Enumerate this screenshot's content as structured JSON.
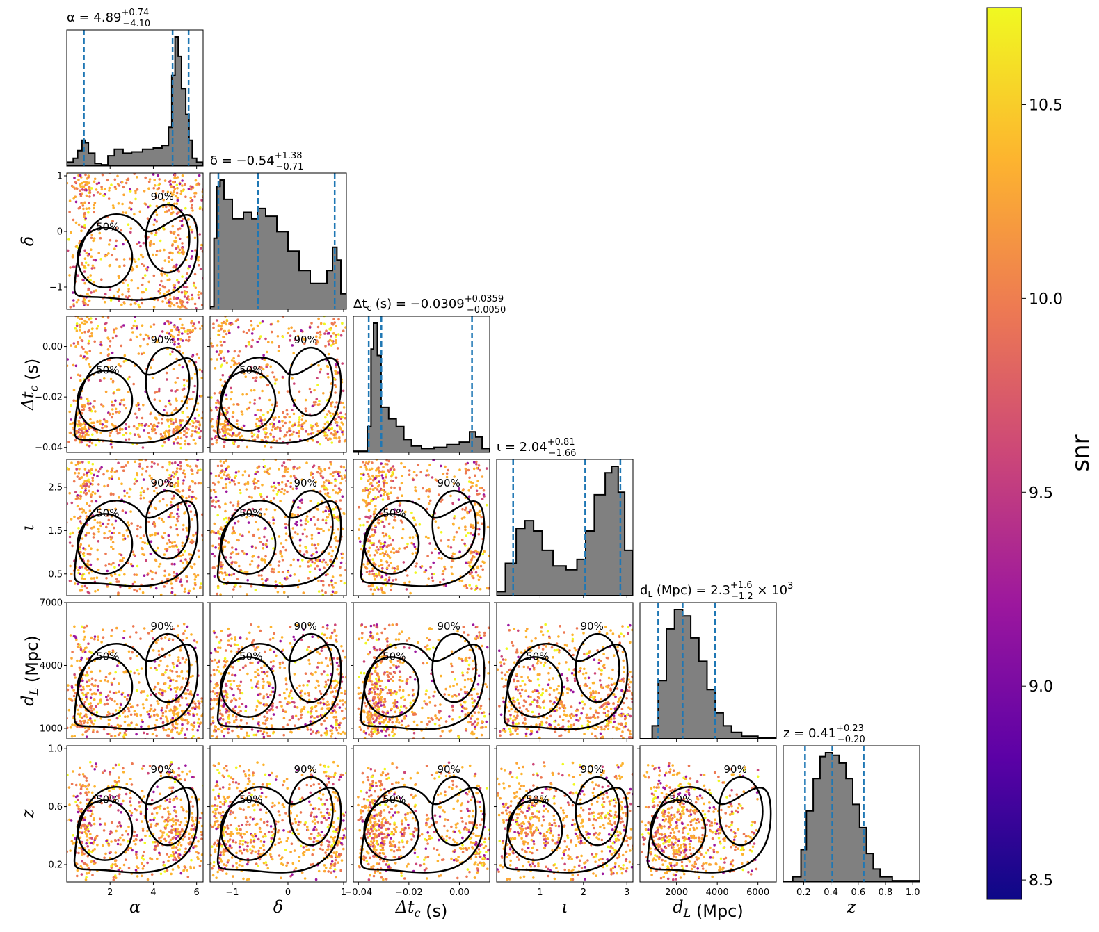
{
  "chart_data": {
    "type": "corner",
    "parameters": [
      {
        "key": "alpha",
        "label": "α",
        "title": "α = 4.89",
        "up": "+0.74",
        "lo": "−4.10",
        "lim": [
          0.0,
          6.3
        ],
        "ticks": [
          2,
          4,
          6
        ],
        "tick_labels": [
          "2",
          "4",
          "6"
        ],
        "quantiles": [
          0.79,
          4.89,
          5.63
        ]
      },
      {
        "key": "delta",
        "label": "δ",
        "title": "δ = −0.54",
        "up": "+1.38",
        "lo": "−0.71",
        "lim": [
          -1.4,
          1.05
        ],
        "ticks": [
          -1,
          0,
          1
        ],
        "tick_labels": [
          "−1",
          "0",
          "1"
        ],
        "quantiles": [
          -1.25,
          -0.54,
          0.84
        ]
      },
      {
        "key": "dtc",
        "label": "Δt_c (s)",
        "title": "Δt_c (s) = −0.0309",
        "up": "+0.0359",
        "lo": "−0.0050",
        "lim": [
          -0.042,
          0.012
        ],
        "ticks": [
          -0.04,
          -0.02,
          0.0
        ],
        "tick_labels": [
          "−0.04",
          "−0.02",
          "0.00"
        ],
        "quantiles": [
          -0.0359,
          -0.0309,
          0.005
        ]
      },
      {
        "key": "iota",
        "label": "ι",
        "title": "ι = 2.04",
        "up": "+0.81",
        "lo": "−1.66",
        "lim": [
          0.0,
          3.14
        ],
        "ticks": [
          1,
          2,
          3
        ],
        "tick_labels": [
          "1",
          "2",
          "3"
        ],
        "quantiles": [
          0.38,
          2.04,
          2.85
        ]
      },
      {
        "key": "dl",
        "label": "d_L (Mpc)",
        "title": "d_L (Mpc) = 2.3",
        "up": "+1.6",
        "lo": "−1.2",
        "title_suffix": "× 10",
        "title_exp": "3",
        "lim": [
          200,
          6900
        ],
        "ticks": [
          2000,
          4000,
          6000
        ],
        "tick_labels": [
          "2000",
          "4000",
          "6000"
        ],
        "quantiles": [
          1100,
          2300,
          3900
        ]
      },
      {
        "key": "z",
        "label": "z",
        "title": "z = 0.41",
        "up": "+0.23",
        "lo": "−0.20",
        "lim": [
          0.05,
          1.05
        ],
        "ticks": [
          0.2,
          0.4,
          0.6,
          0.8,
          1.0
        ],
        "tick_labels": [
          "0.2",
          "0.4",
          "0.6",
          "0.8",
          "1.0"
        ],
        "quantiles": [
          0.21,
          0.41,
          0.64
        ]
      }
    ],
    "row_ticks": {
      "delta": {
        "ticks": [
          -1,
          0,
          1
        ],
        "tick_labels": [
          "−1",
          "0",
          "1"
        ]
      },
      "dtc": {
        "ticks": [
          -0.04,
          -0.02,
          0.0
        ],
        "tick_labels": [
          "−0.04",
          "−0.02",
          "0.00"
        ]
      },
      "iota": {
        "ticks": [
          0.5,
          1.5,
          2.5
        ],
        "tick_labels": [
          "0.5",
          "1.5",
          "2.5"
        ]
      },
      "dl": {
        "lim": [
          500,
          7000
        ],
        "ticks": [
          1000,
          4000,
          7000
        ],
        "tick_labels": [
          "1000",
          "4000",
          "7000"
        ]
      },
      "z": {
        "lim": [
          0.08,
          1.02
        ],
        "ticks": [
          0.2,
          0.6,
          1.0
        ],
        "tick_labels": [
          "0.2",
          "0.6",
          "1.0"
        ]
      }
    },
    "histograms": {
      "alpha": [
        [
          0.0,
          0.03
        ],
        [
          0.3,
          0.06
        ],
        [
          0.5,
          0.12
        ],
        [
          0.7,
          0.2
        ],
        [
          0.85,
          0.18
        ],
        [
          1.0,
          0.1
        ],
        [
          1.3,
          0.02
        ],
        [
          1.6,
          0.01
        ],
        [
          1.9,
          0.08
        ],
        [
          2.2,
          0.13
        ],
        [
          2.6,
          0.1
        ],
        [
          3.0,
          0.11
        ],
        [
          3.5,
          0.13
        ],
        [
          4.0,
          0.14
        ],
        [
          4.4,
          0.16
        ],
        [
          4.7,
          0.3
        ],
        [
          4.85,
          0.7
        ],
        [
          5.0,
          1.0
        ],
        [
          5.15,
          0.85
        ],
        [
          5.3,
          0.6
        ],
        [
          5.5,
          0.4
        ],
        [
          5.65,
          0.2
        ],
        [
          5.8,
          0.06
        ],
        [
          6.0,
          0.03
        ],
        [
          6.3,
          0.02
        ]
      ],
      "delta": [
        [
          -1.4,
          0.02
        ],
        [
          -1.33,
          0.55
        ],
        [
          -1.28,
          0.95
        ],
        [
          -1.22,
          1.0
        ],
        [
          -1.15,
          0.85
        ],
        [
          -1.0,
          0.7
        ],
        [
          -0.8,
          0.75
        ],
        [
          -0.65,
          0.7
        ],
        [
          -0.55,
          0.78
        ],
        [
          -0.4,
          0.72
        ],
        [
          -0.2,
          0.6
        ],
        [
          0.0,
          0.45
        ],
        [
          0.2,
          0.3
        ],
        [
          0.4,
          0.2
        ],
        [
          0.55,
          0.2
        ],
        [
          0.7,
          0.3
        ],
        [
          0.8,
          0.48
        ],
        [
          0.88,
          0.38
        ],
        [
          0.95,
          0.12
        ],
        [
          1.05,
          0.03
        ]
      ],
      "dtc": [
        [
          -0.042,
          0.01
        ],
        [
          -0.0365,
          0.2
        ],
        [
          -0.035,
          0.8
        ],
        [
          -0.034,
          1.0
        ],
        [
          -0.0325,
          0.75
        ],
        [
          -0.031,
          0.35
        ],
        [
          -0.028,
          0.26
        ],
        [
          -0.025,
          0.2
        ],
        [
          -0.022,
          0.1
        ],
        [
          -0.019,
          0.05
        ],
        [
          -0.015,
          0.03
        ],
        [
          -0.01,
          0.04
        ],
        [
          -0.005,
          0.06
        ],
        [
          0.0,
          0.08
        ],
        [
          0.004,
          0.16
        ],
        [
          0.0065,
          0.12
        ],
        [
          0.009,
          0.03
        ],
        [
          0.012,
          0.01
        ]
      ],
      "iota": [
        [
          0.0,
          0.03
        ],
        [
          0.2,
          0.25
        ],
        [
          0.45,
          0.52
        ],
        [
          0.65,
          0.58
        ],
        [
          0.85,
          0.5
        ],
        [
          1.05,
          0.35
        ],
        [
          1.3,
          0.23
        ],
        [
          1.6,
          0.2
        ],
        [
          1.85,
          0.28
        ],
        [
          2.05,
          0.5
        ],
        [
          2.25,
          0.78
        ],
        [
          2.5,
          0.95
        ],
        [
          2.65,
          1.0
        ],
        [
          2.8,
          0.8
        ],
        [
          2.95,
          0.35
        ],
        [
          3.14,
          0.05
        ]
      ],
      "dl": [
        [
          200,
          0.0
        ],
        [
          800,
          0.1
        ],
        [
          1100,
          0.45
        ],
        [
          1500,
          0.85
        ],
        [
          1900,
          1.0
        ],
        [
          2300,
          0.95
        ],
        [
          2700,
          0.78
        ],
        [
          3100,
          0.6
        ],
        [
          3500,
          0.38
        ],
        [
          3900,
          0.2
        ],
        [
          4300,
          0.1
        ],
        [
          4700,
          0.05
        ],
        [
          5200,
          0.02
        ],
        [
          6000,
          0.01
        ],
        [
          6900,
          0.0
        ]
      ],
      "z": [
        [
          0.05,
          0.0
        ],
        [
          0.12,
          0.04
        ],
        [
          0.18,
          0.25
        ],
        [
          0.22,
          0.55
        ],
        [
          0.27,
          0.8
        ],
        [
          0.32,
          0.97
        ],
        [
          0.36,
          1.0
        ],
        [
          0.41,
          0.98
        ],
        [
          0.46,
          0.92
        ],
        [
          0.51,
          0.8
        ],
        [
          0.56,
          0.6
        ],
        [
          0.61,
          0.42
        ],
        [
          0.66,
          0.22
        ],
        [
          0.71,
          0.1
        ],
        [
          0.76,
          0.04
        ],
        [
          0.85,
          0.01
        ],
        [
          1.05,
          0.0
        ]
      ]
    },
    "scatter_samples": {
      "alpha": [
        0.3,
        0.5,
        0.6,
        0.7,
        0.8,
        0.9,
        1.0,
        1.1,
        1.3,
        1.9,
        2.1,
        2.3,
        2.6,
        2.9,
        3.2,
        3.5,
        3.8,
        4.1,
        4.4,
        4.6,
        4.8,
        4.9,
        5.0,
        5.1,
        5.2,
        5.3,
        5.5,
        5.7,
        5.9,
        6.1
      ],
      "delta": [
        -1.3,
        -1.25,
        -1.2,
        -1.15,
        -1.1,
        -1.0,
        -0.9,
        -0.75,
        -0.6,
        -0.5,
        -0.4,
        -0.3,
        -0.15,
        0.0,
        0.15,
        0.3,
        0.45,
        0.55,
        0.65,
        0.75,
        0.82,
        0.85,
        0.9,
        0.95
      ],
      "dtc": [
        -0.037,
        -0.036,
        -0.035,
        -0.034,
        -0.033,
        -0.032,
        -0.031,
        -0.03,
        -0.028,
        -0.026,
        -0.024,
        -0.02,
        -0.015,
        -0.01,
        -0.005,
        0.0,
        0.003,
        0.005,
        0.007,
        0.009
      ],
      "iota": [
        0.2,
        0.35,
        0.5,
        0.65,
        0.8,
        0.95,
        1.1,
        1.3,
        1.5,
        1.7,
        1.9,
        2.1,
        2.3,
        2.45,
        2.6,
        2.75,
        2.9,
        3.0
      ],
      "dl": [
        700,
        900,
        1100,
        1300,
        1500,
        1700,
        1900,
        2100,
        2300,
        2500,
        2700,
        3000,
        3300,
        3600,
        4000,
        4500,
        5000,
        5600
      ],
      "z": [
        0.15,
        0.2,
        0.25,
        0.3,
        0.33,
        0.36,
        0.39,
        0.42,
        0.45,
        0.48,
        0.52,
        0.56,
        0.6,
        0.65,
        0.7,
        0.78,
        0.85
      ]
    },
    "contour_labels": {
      "p50": "50%",
      "p90": "90%"
    },
    "colorbar": {
      "label": "snr",
      "min": 8.45,
      "max": 10.75,
      "ticks": [
        8.5,
        9.0,
        9.5,
        10.0,
        10.5
      ],
      "tick_labels": [
        "8.5",
        "9.0",
        "9.5",
        "10.0",
        "10.5"
      ],
      "colormap": "plasma",
      "stops": [
        "#0d0887",
        "#5c01a6",
        "#9c179e",
        "#cc4778",
        "#ed7953",
        "#fdb42f",
        "#f0f921"
      ]
    },
    "colors": {
      "histogram_fill": "#808080",
      "quantile_line": "#1f77b4",
      "contour": "#000000"
    }
  }
}
